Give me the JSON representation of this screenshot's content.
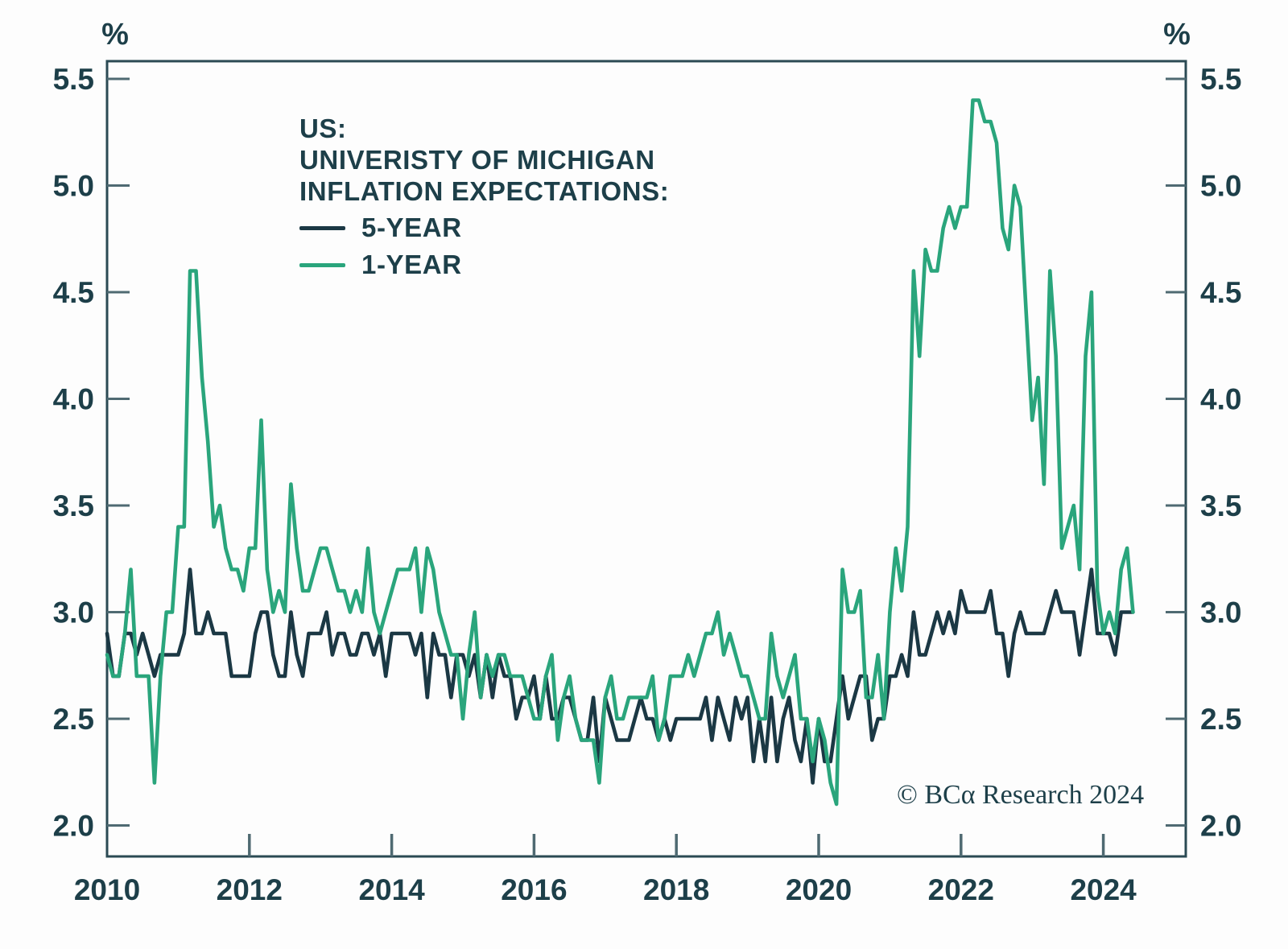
{
  "chart_data": {
    "type": "line",
    "title_lines": [
      "US:",
      "UNIVERISTY OF MICHIGAN",
      "INFLATION EXPECTATIONS:"
    ],
    "unit_label": "%",
    "copyright": "© BCα Research 2024",
    "background_color": "#fdfdfd",
    "text_color": "#1d3f49",
    "axis_color": "#2b4a54",
    "tick_color": "#4f6a72",
    "grid": false,
    "legend_position": "top-left-inside",
    "x_axis_range": [
      "2010-01",
      "2025-02"
    ],
    "y_axis_range": [
      1.86,
      5.62
    ],
    "y_ticks": [
      {
        "label": "5.5",
        "value": 5.5
      },
      {
        "label": "5.0",
        "value": 5.0
      },
      {
        "label": "4.5",
        "value": 4.5
      },
      {
        "label": "4.0",
        "value": 4.0
      },
      {
        "label": "3.5",
        "value": 3.5
      },
      {
        "label": "3.0",
        "value": 3.0
      },
      {
        "label": "2.5",
        "value": 2.5
      },
      {
        "label": "2.0",
        "value": 2.0
      }
    ],
    "x_ticks": [
      {
        "label": "2010",
        "value": 2010,
        "tick": false
      },
      {
        "label": "2012",
        "value": 2012,
        "tick": true
      },
      {
        "label": "2014",
        "value": 2014,
        "tick": true
      },
      {
        "label": "2016",
        "value": 2016,
        "tick": true
      },
      {
        "label": "2018",
        "value": 2018,
        "tick": true
      },
      {
        "label": "2020",
        "value": 2020,
        "tick": true
      },
      {
        "label": "2022",
        "value": 2022,
        "tick": true
      },
      {
        "label": "2024",
        "value": 2024,
        "tick": true
      }
    ],
    "series_start_month": "2010-01",
    "series_frequency": "monthly",
    "series": [
      {
        "name": "5-YEAR",
        "color": "#1b3844",
        "values": [
          2.9,
          2.7,
          2.7,
          2.9,
          2.9,
          2.8,
          2.9,
          2.8,
          2.7,
          2.8,
          2.8,
          2.8,
          2.8,
          2.9,
          3.2,
          2.9,
          2.9,
          3.0,
          2.9,
          2.9,
          2.9,
          2.7,
          2.7,
          2.7,
          2.7,
          2.9,
          3.0,
          3.0,
          2.8,
          2.7,
          2.7,
          3.0,
          2.8,
          2.7,
          2.9,
          2.9,
          2.9,
          3.0,
          2.8,
          2.9,
          2.9,
          2.8,
          2.8,
          2.9,
          2.9,
          2.8,
          2.9,
          2.7,
          2.9,
          2.9,
          2.9,
          2.9,
          2.8,
          2.9,
          2.6,
          2.9,
          2.8,
          2.8,
          2.6,
          2.8,
          2.8,
          2.7,
          2.8,
          2.6,
          2.8,
          2.6,
          2.8,
          2.7,
          2.7,
          2.5,
          2.6,
          2.6,
          2.7,
          2.5,
          2.7,
          2.5,
          2.5,
          2.6,
          2.6,
          2.5,
          2.4,
          2.4,
          2.6,
          2.3,
          2.6,
          2.5,
          2.4,
          2.4,
          2.4,
          2.5,
          2.6,
          2.5,
          2.5,
          2.4,
          2.5,
          2.4,
          2.5,
          2.5,
          2.5,
          2.5,
          2.5,
          2.6,
          2.4,
          2.6,
          2.5,
          2.4,
          2.6,
          2.5,
          2.6,
          2.3,
          2.5,
          2.3,
          2.6,
          2.3,
          2.5,
          2.6,
          2.4,
          2.3,
          2.5,
          2.2,
          2.5,
          2.3,
          2.3,
          2.5,
          2.7,
          2.5,
          2.6,
          2.7,
          2.7,
          2.4,
          2.5,
          2.5,
          2.7,
          2.7,
          2.8,
          2.7,
          3.0,
          2.8,
          2.8,
          2.9,
          3.0,
          2.9,
          3.0,
          2.9,
          3.1,
          3.0,
          3.0,
          3.0,
          3.0,
          3.1,
          2.9,
          2.9,
          2.7,
          2.9,
          3.0,
          2.9,
          2.9,
          2.9,
          2.9,
          3.0,
          3.1,
          3.0,
          3.0,
          3.0,
          2.8,
          3.0,
          3.2,
          2.9,
          2.9,
          2.9,
          2.8,
          3.0,
          3.0,
          3.0
        ]
      },
      {
        "name": "1-YEAR",
        "color": "#2aa57c",
        "values": [
          2.8,
          2.7,
          2.7,
          2.9,
          3.2,
          2.7,
          2.7,
          2.7,
          2.2,
          2.7,
          3.0,
          3.0,
          3.4,
          3.4,
          4.6,
          4.6,
          4.1,
          3.8,
          3.4,
          3.5,
          3.3,
          3.2,
          3.2,
          3.1,
          3.3,
          3.3,
          3.9,
          3.2,
          3.0,
          3.1,
          3.0,
          3.6,
          3.3,
          3.1,
          3.1,
          3.2,
          3.3,
          3.3,
          3.2,
          3.1,
          3.1,
          3.0,
          3.1,
          3.0,
          3.3,
          3.0,
          2.9,
          3.0,
          3.1,
          3.2,
          3.2,
          3.2,
          3.3,
          3.0,
          3.3,
          3.2,
          3.0,
          2.9,
          2.8,
          2.8,
          2.5,
          2.8,
          3.0,
          2.6,
          2.8,
          2.7,
          2.8,
          2.8,
          2.7,
          2.7,
          2.7,
          2.6,
          2.5,
          2.5,
          2.7,
          2.8,
          2.4,
          2.6,
          2.7,
          2.5,
          2.4,
          2.4,
          2.4,
          2.2,
          2.6,
          2.7,
          2.5,
          2.5,
          2.6,
          2.6,
          2.6,
          2.6,
          2.7,
          2.4,
          2.5,
          2.7,
          2.7,
          2.7,
          2.8,
          2.7,
          2.8,
          2.9,
          2.9,
          3.0,
          2.8,
          2.9,
          2.8,
          2.7,
          2.7,
          2.6,
          2.5,
          2.5,
          2.9,
          2.7,
          2.6,
          2.7,
          2.8,
          2.5,
          2.5,
          2.3,
          2.5,
          2.4,
          2.2,
          2.1,
          3.2,
          3.0,
          3.0,
          3.1,
          2.6,
          2.6,
          2.8,
          2.5,
          3.0,
          3.3,
          3.1,
          3.4,
          4.6,
          4.2,
          4.7,
          4.6,
          4.6,
          4.8,
          4.9,
          4.8,
          4.9,
          4.9,
          5.4,
          5.4,
          5.3,
          5.3,
          5.2,
          4.8,
          4.7,
          5.0,
          4.9,
          4.4,
          3.9,
          4.1,
          3.6,
          4.6,
          4.2,
          3.3,
          3.4,
          3.5,
          3.2,
          4.2,
          4.5,
          3.1,
          2.9,
          3.0,
          2.9,
          3.2,
          3.3,
          3.0
        ]
      }
    ]
  }
}
